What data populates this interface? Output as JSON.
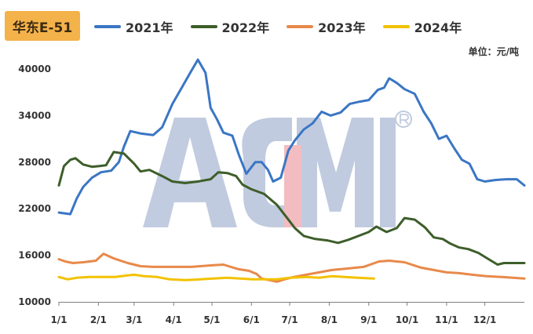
{
  "title": "华东E-51",
  "unit": "单位：元/吨",
  "chart_data": {
    "type": "line",
    "title": "华东E-51",
    "xlabel": "",
    "ylabel": "",
    "unit": "单位：元/吨",
    "ylim": [
      10000,
      40000
    ],
    "yticks": [
      10000,
      16000,
      22000,
      28000,
      34000,
      40000
    ],
    "ytick_labels": [
      "10000",
      "16000",
      "22000",
      "28000",
      "34000",
      "40000"
    ],
    "xlim": [
      1,
      366
    ],
    "xticks": [
      1,
      32,
      60,
      91,
      121,
      152,
      182,
      213,
      244,
      274,
      305,
      335
    ],
    "xtick_labels": [
      "1/1",
      "2/1",
      "3/1",
      "4/1",
      "5/1",
      "6/1",
      "7/1",
      "8/1",
      "9/1",
      "10/1",
      "11/1",
      "12/1"
    ],
    "grid": false,
    "legend_position": "top",
    "watermark_text": "ACMI",
    "series": [
      {
        "name": "2021年",
        "color": "#3a76c4",
        "points": [
          [
            1,
            21500
          ],
          [
            10,
            21300
          ],
          [
            15,
            23300
          ],
          [
            20,
            24800
          ],
          [
            27,
            26000
          ],
          [
            34,
            26700
          ],
          [
            42,
            26900
          ],
          [
            48,
            28000
          ],
          [
            52,
            30000
          ],
          [
            57,
            32000
          ],
          [
            65,
            31700
          ],
          [
            75,
            31500
          ],
          [
            82,
            32500
          ],
          [
            90,
            35500
          ],
          [
            97,
            37500
          ],
          [
            104,
            39500
          ],
          [
            110,
            41200
          ],
          [
            116,
            39500
          ],
          [
            120,
            35000
          ],
          [
            125,
            33500
          ],
          [
            130,
            31800
          ],
          [
            137,
            31400
          ],
          [
            142,
            29000
          ],
          [
            148,
            26500
          ],
          [
            155,
            28000
          ],
          [
            160,
            28000
          ],
          [
            165,
            27000
          ],
          [
            169,
            25500
          ],
          [
            175,
            26000
          ],
          [
            181,
            29500
          ],
          [
            186,
            30800
          ],
          [
            193,
            32200
          ],
          [
            200,
            33000
          ],
          [
            207,
            34500
          ],
          [
            214,
            34000
          ],
          [
            222,
            34400
          ],
          [
            229,
            35500
          ],
          [
            237,
            35800
          ],
          [
            244,
            36000
          ],
          [
            251,
            37300
          ],
          [
            256,
            37600
          ],
          [
            260,
            38800
          ],
          [
            266,
            38200
          ],
          [
            272,
            37400
          ],
          [
            280,
            36800
          ],
          [
            287,
            34500
          ],
          [
            293,
            33000
          ],
          [
            299,
            31000
          ],
          [
            305,
            31400
          ],
          [
            311,
            29800
          ],
          [
            317,
            28300
          ],
          [
            323,
            27800
          ],
          [
            329,
            25800
          ],
          [
            335,
            25500
          ],
          [
            343,
            25700
          ],
          [
            352,
            25800
          ],
          [
            360,
            25800
          ],
          [
            366,
            25000
          ]
        ]
      },
      {
        "name": "2022年",
        "color": "#3d5e2a",
        "points": [
          [
            1,
            25000
          ],
          [
            5,
            27500
          ],
          [
            10,
            28300
          ],
          [
            14,
            28500
          ],
          [
            20,
            27700
          ],
          [
            27,
            27400
          ],
          [
            33,
            27500
          ],
          [
            38,
            27600
          ],
          [
            44,
            29300
          ],
          [
            52,
            29100
          ],
          [
            60,
            27800
          ],
          [
            65,
            26800
          ],
          [
            72,
            27000
          ],
          [
            82,
            26200
          ],
          [
            90,
            25500
          ],
          [
            100,
            25300
          ],
          [
            110,
            25500
          ],
          [
            120,
            25800
          ],
          [
            126,
            26700
          ],
          [
            133,
            26600
          ],
          [
            140,
            26200
          ],
          [
            145,
            25100
          ],
          [
            152,
            24500
          ],
          [
            162,
            23900
          ],
          [
            172,
            22500
          ],
          [
            180,
            20800
          ],
          [
            186,
            19500
          ],
          [
            193,
            18500
          ],
          [
            202,
            18100
          ],
          [
            212,
            17900
          ],
          [
            220,
            17600
          ],
          [
            228,
            18000
          ],
          [
            236,
            18500
          ],
          [
            244,
            19000
          ],
          [
            250,
            19700
          ],
          [
            258,
            19000
          ],
          [
            266,
            19500
          ],
          [
            272,
            20800
          ],
          [
            280,
            20600
          ],
          [
            288,
            19600
          ],
          [
            295,
            18300
          ],
          [
            302,
            18100
          ],
          [
            308,
            17500
          ],
          [
            315,
            17000
          ],
          [
            322,
            16800
          ],
          [
            330,
            16300
          ],
          [
            338,
            15500
          ],
          [
            345,
            14800
          ],
          [
            350,
            15000
          ],
          [
            366,
            15000
          ]
        ]
      },
      {
        "name": "2023年",
        "color": "#e8894a",
        "points": [
          [
            1,
            15500
          ],
          [
            6,
            15200
          ],
          [
            12,
            15000
          ],
          [
            20,
            15100
          ],
          [
            30,
            15300
          ],
          [
            36,
            16200
          ],
          [
            44,
            15600
          ],
          [
            55,
            15000
          ],
          [
            65,
            14600
          ],
          [
            75,
            14500
          ],
          [
            90,
            14500
          ],
          [
            105,
            14500
          ],
          [
            120,
            14700
          ],
          [
            130,
            14800
          ],
          [
            142,
            14200
          ],
          [
            150,
            14000
          ],
          [
            156,
            13600
          ],
          [
            160,
            13000
          ],
          [
            166,
            12800
          ],
          [
            172,
            12600
          ],
          [
            178,
            12900
          ],
          [
            185,
            13200
          ],
          [
            195,
            13500
          ],
          [
            205,
            13800
          ],
          [
            215,
            14100
          ],
          [
            228,
            14300
          ],
          [
            240,
            14500
          ],
          [
            252,
            15200
          ],
          [
            260,
            15300
          ],
          [
            272,
            15100
          ],
          [
            285,
            14400
          ],
          [
            295,
            14100
          ],
          [
            305,
            13800
          ],
          [
            315,
            13700
          ],
          [
            325,
            13500
          ],
          [
            336,
            13300
          ],
          [
            348,
            13200
          ],
          [
            366,
            13000
          ]
        ]
      },
      {
        "name": "2024年",
        "color": "#f2c200",
        "points": [
          [
            1,
            13200
          ],
          [
            8,
            12900
          ],
          [
            15,
            13100
          ],
          [
            25,
            13200
          ],
          [
            35,
            13200
          ],
          [
            45,
            13200
          ],
          [
            55,
            13400
          ],
          [
            60,
            13500
          ],
          [
            68,
            13300
          ],
          [
            78,
            13200
          ],
          [
            88,
            12900
          ],
          [
            100,
            12800
          ],
          [
            112,
            12900
          ],
          [
            122,
            13000
          ],
          [
            133,
            13100
          ],
          [
            143,
            13000
          ],
          [
            153,
            12900
          ],
          [
            162,
            12900
          ],
          [
            172,
            12900
          ],
          [
            182,
            13100
          ],
          [
            195,
            13200
          ],
          [
            205,
            13100
          ],
          [
            215,
            13300
          ],
          [
            225,
            13200
          ],
          [
            235,
            13100
          ],
          [
            248,
            13000
          ]
        ]
      }
    ]
  }
}
